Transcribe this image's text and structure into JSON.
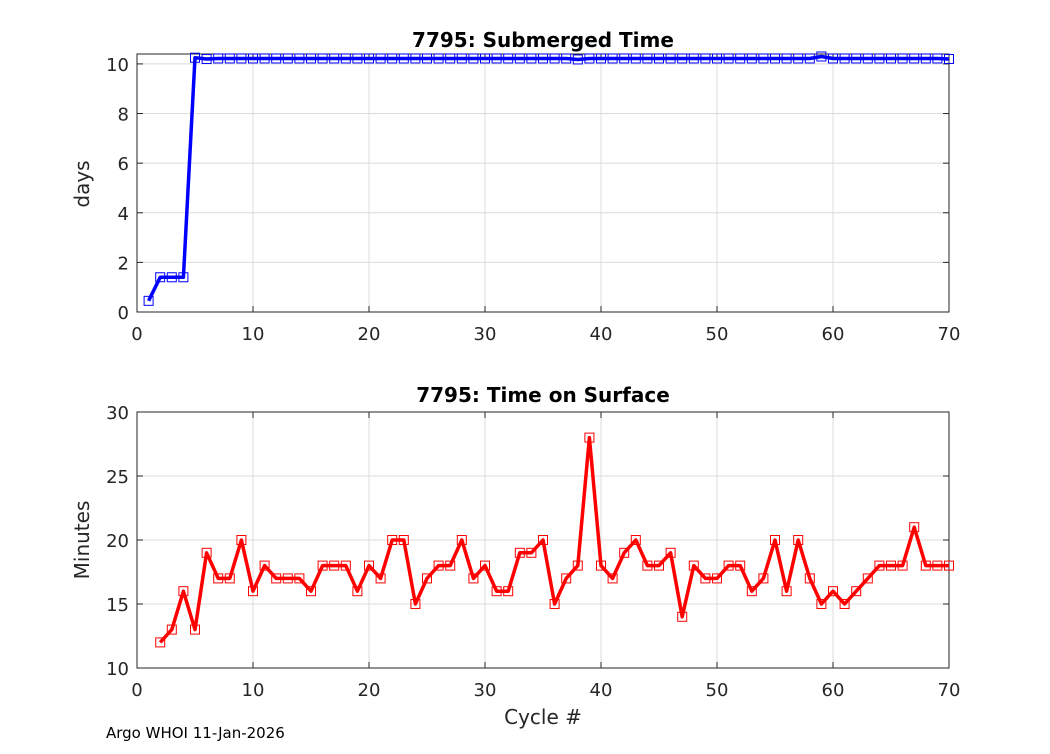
{
  "footer": "Argo WHOI 11-Jan-2026",
  "chart_data": [
    {
      "type": "line",
      "title": "7795: Submerged Time",
      "xlabel": "",
      "ylabel": "days",
      "xlim": [
        0,
        70
      ],
      "ylim": [
        0,
        10.4
      ],
      "xticks": [
        0,
        10,
        20,
        30,
        40,
        50,
        60,
        70
      ],
      "yticks": [
        0,
        2,
        4,
        6,
        8,
        10
      ],
      "grid": true,
      "color": "#0000ff",
      "marker": "square",
      "x": [
        1,
        2,
        3,
        4,
        5,
        6,
        7,
        8,
        9,
        10,
        11,
        12,
        13,
        14,
        15,
        16,
        17,
        18,
        19,
        20,
        21,
        22,
        23,
        24,
        25,
        26,
        27,
        28,
        29,
        30,
        31,
        32,
        33,
        34,
        35,
        36,
        37,
        38,
        39,
        40,
        41,
        42,
        43,
        44,
        45,
        46,
        47,
        48,
        49,
        50,
        51,
        52,
        53,
        54,
        55,
        56,
        57,
        58,
        59,
        60,
        61,
        62,
        63,
        64,
        65,
        66,
        67,
        68,
        69,
        70
      ],
      "y": [
        0.45,
        1.4,
        1.4,
        1.4,
        10.25,
        10.2,
        10.22,
        10.22,
        10.22,
        10.22,
        10.22,
        10.22,
        10.22,
        10.22,
        10.22,
        10.22,
        10.22,
        10.22,
        10.22,
        10.22,
        10.22,
        10.22,
        10.22,
        10.22,
        10.22,
        10.22,
        10.22,
        10.22,
        10.22,
        10.22,
        10.22,
        10.22,
        10.22,
        10.22,
        10.22,
        10.22,
        10.22,
        10.18,
        10.22,
        10.22,
        10.22,
        10.22,
        10.22,
        10.22,
        10.22,
        10.22,
        10.22,
        10.22,
        10.22,
        10.22,
        10.22,
        10.22,
        10.22,
        10.22,
        10.22,
        10.22,
        10.22,
        10.22,
        10.3,
        10.22,
        10.22,
        10.22,
        10.22,
        10.22,
        10.22,
        10.22,
        10.22,
        10.22,
        10.22,
        10.2
      ]
    },
    {
      "type": "line",
      "title": "7795: Time on Surface",
      "xlabel": "Cycle #",
      "ylabel": "Minutes",
      "xlim": [
        0,
        70
      ],
      "ylim": [
        10,
        30
      ],
      "xticks": [
        0,
        10,
        20,
        30,
        40,
        50,
        60,
        70
      ],
      "yticks": [
        10,
        15,
        20,
        25,
        30
      ],
      "grid": true,
      "color": "#ff0000",
      "marker": "square",
      "x": [
        2,
        3,
        4,
        5,
        6,
        7,
        8,
        9,
        10,
        11,
        12,
        13,
        14,
        15,
        16,
        17,
        18,
        19,
        20,
        21,
        22,
        23,
        24,
        25,
        26,
        27,
        28,
        29,
        30,
        31,
        32,
        33,
        34,
        35,
        36,
        37,
        38,
        39,
        40,
        41,
        42,
        43,
        44,
        45,
        46,
        47,
        48,
        49,
        50,
        51,
        52,
        53,
        54,
        55,
        56,
        57,
        58,
        59,
        60,
        61,
        62,
        63,
        64,
        65,
        66,
        67,
        68,
        69,
        70
      ],
      "y": [
        12,
        13,
        16,
        13,
        19,
        17,
        17,
        20,
        16,
        18,
        17,
        17,
        17,
        16,
        18,
        18,
        18,
        16,
        18,
        17,
        20,
        20,
        15,
        17,
        18,
        18,
        20,
        17,
        18,
        16,
        16,
        19,
        19,
        20,
        15,
        17,
        18,
        28,
        18,
        17,
        19,
        20,
        18,
        18,
        19,
        14,
        18,
        17,
        17,
        18,
        18,
        16,
        17,
        20,
        16,
        20,
        17,
        15,
        16,
        15,
        16,
        17,
        18,
        18,
        18,
        21,
        18,
        18,
        18
      ]
    }
  ]
}
